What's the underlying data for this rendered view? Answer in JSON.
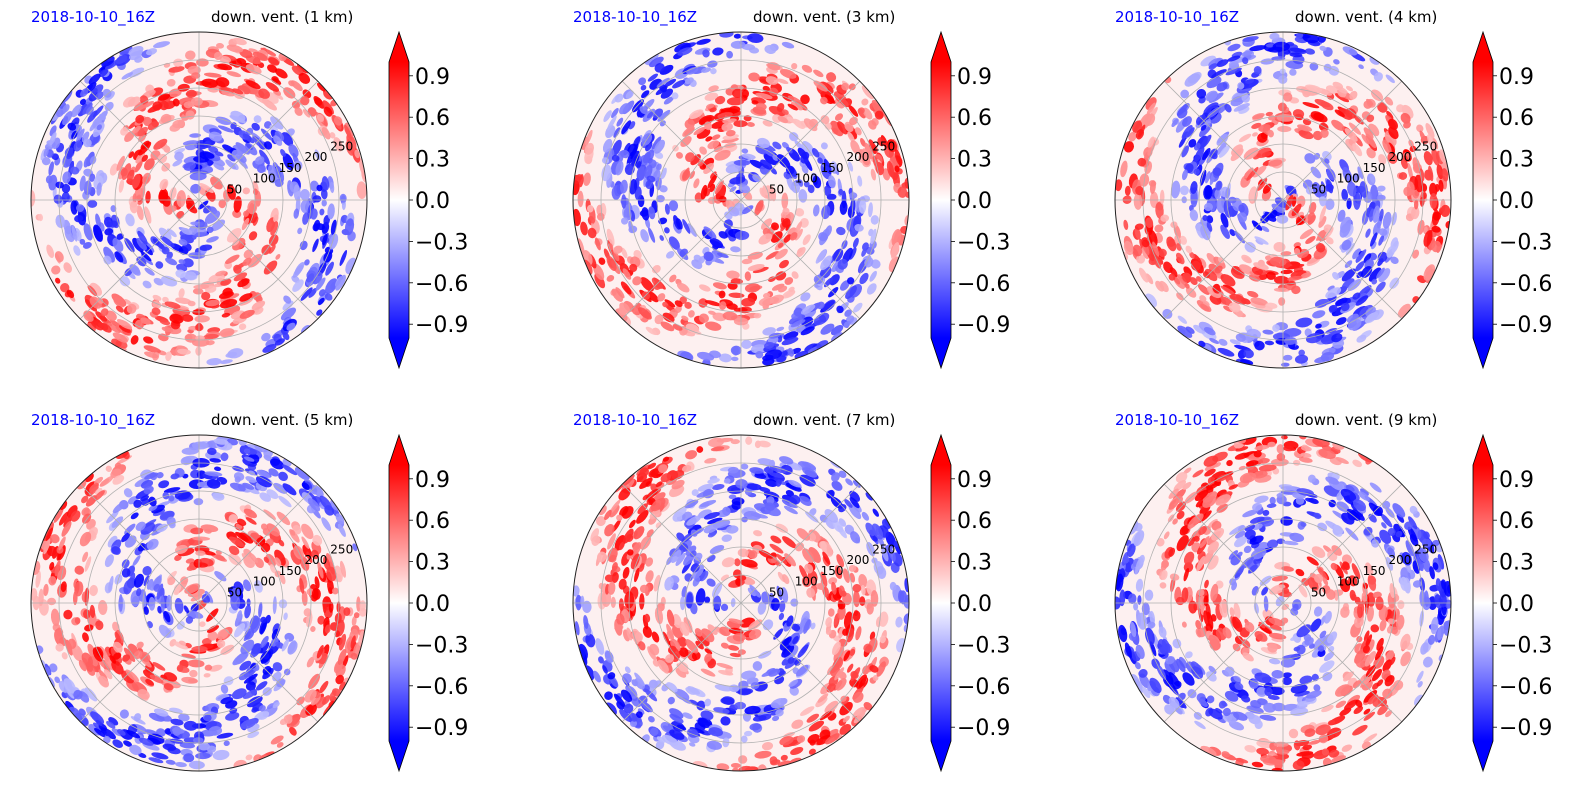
{
  "chart_data": [
    {
      "type": "heatmap",
      "projection": "polar",
      "date": "2018-10-10_16Z",
      "title": "down. vent. (1 km)",
      "radial_ticks": [
        50,
        100,
        150,
        200,
        250
      ],
      "rlim": [
        0,
        300
      ],
      "colorbar": {
        "ticks": [
          0.9,
          0.6,
          0.3,
          0.0,
          -0.3,
          -0.6,
          -0.9
        ],
        "tick_labels": [
          "0.9",
          "0.6",
          "0.3",
          "0.0",
          "−0.3",
          "−0.6",
          "−0.9"
        ],
        "range": [
          -1.0,
          1.0
        ],
        "extend": "both",
        "cmap": "bwr"
      }
    },
    {
      "type": "heatmap",
      "projection": "polar",
      "date": "2018-10-10_16Z",
      "title": "down. vent. (3 km)",
      "radial_ticks": [
        50,
        100,
        150,
        200,
        250
      ],
      "rlim": [
        0,
        300
      ],
      "colorbar": {
        "ticks": [
          0.9,
          0.6,
          0.3,
          0.0,
          -0.3,
          -0.6,
          -0.9
        ],
        "tick_labels": [
          "0.9",
          "0.6",
          "0.3",
          "0.0",
          "−0.3",
          "−0.6",
          "−0.9"
        ],
        "range": [
          -1.0,
          1.0
        ],
        "extend": "both",
        "cmap": "bwr"
      }
    },
    {
      "type": "heatmap",
      "projection": "polar",
      "date": "2018-10-10_16Z",
      "title": "down. vent. (4 km)",
      "radial_ticks": [
        50,
        100,
        150,
        200,
        250
      ],
      "rlim": [
        0,
        300
      ],
      "colorbar": {
        "ticks": [
          0.9,
          0.6,
          0.3,
          0.0,
          -0.3,
          -0.6,
          -0.9
        ],
        "tick_labels": [
          "0.9",
          "0.6",
          "0.3",
          "0.0",
          "−0.3",
          "−0.6",
          "−0.9"
        ],
        "range": [
          -1.0,
          1.0
        ],
        "extend": "both",
        "cmap": "bwr"
      }
    },
    {
      "type": "heatmap",
      "projection": "polar",
      "date": "2018-10-10_16Z",
      "title": "down. vent. (5 km)",
      "radial_ticks": [
        50,
        100,
        150,
        200,
        250
      ],
      "rlim": [
        0,
        300
      ],
      "colorbar": {
        "ticks": [
          0.9,
          0.6,
          0.3,
          0.0,
          -0.3,
          -0.6,
          -0.9
        ],
        "tick_labels": [
          "0.9",
          "0.6",
          "0.3",
          "0.0",
          "−0.3",
          "−0.6",
          "−0.9"
        ],
        "range": [
          -1.0,
          1.0
        ],
        "extend": "both",
        "cmap": "bwr"
      }
    },
    {
      "type": "heatmap",
      "projection": "polar",
      "date": "2018-10-10_16Z",
      "title": "down. vent. (7 km)",
      "radial_ticks": [
        50,
        100,
        150,
        200,
        250
      ],
      "rlim": [
        0,
        300
      ],
      "colorbar": {
        "ticks": [
          0.9,
          0.6,
          0.3,
          0.0,
          -0.3,
          -0.6,
          -0.9
        ],
        "tick_labels": [
          "0.9",
          "0.6",
          "0.3",
          "0.0",
          "−0.3",
          "−0.6",
          "−0.9"
        ],
        "range": [
          -1.0,
          1.0
        ],
        "extend": "both",
        "cmap": "bwr"
      }
    },
    {
      "type": "heatmap",
      "projection": "polar",
      "date": "2018-10-10_16Z",
      "title": "down. vent. (9 km)",
      "radial_ticks": [
        50,
        100,
        150,
        200,
        250
      ],
      "rlim": [
        0,
        300
      ],
      "colorbar": {
        "ticks": [
          0.9,
          0.6,
          0.3,
          0.0,
          -0.3,
          -0.6,
          -0.9
        ],
        "tick_labels": [
          "0.9",
          "0.6",
          "0.3",
          "0.0",
          "−0.3",
          "−0.6",
          "−0.9"
        ],
        "range": [
          -1.0,
          1.0
        ],
        "extend": "both",
        "cmap": "bwr"
      }
    }
  ],
  "colors": {
    "positive": "#ff0000",
    "negative": "#0000ff",
    "neutral": "#ffffff",
    "date_text": "#0000ff",
    "grid": "#b0b0b0"
  }
}
